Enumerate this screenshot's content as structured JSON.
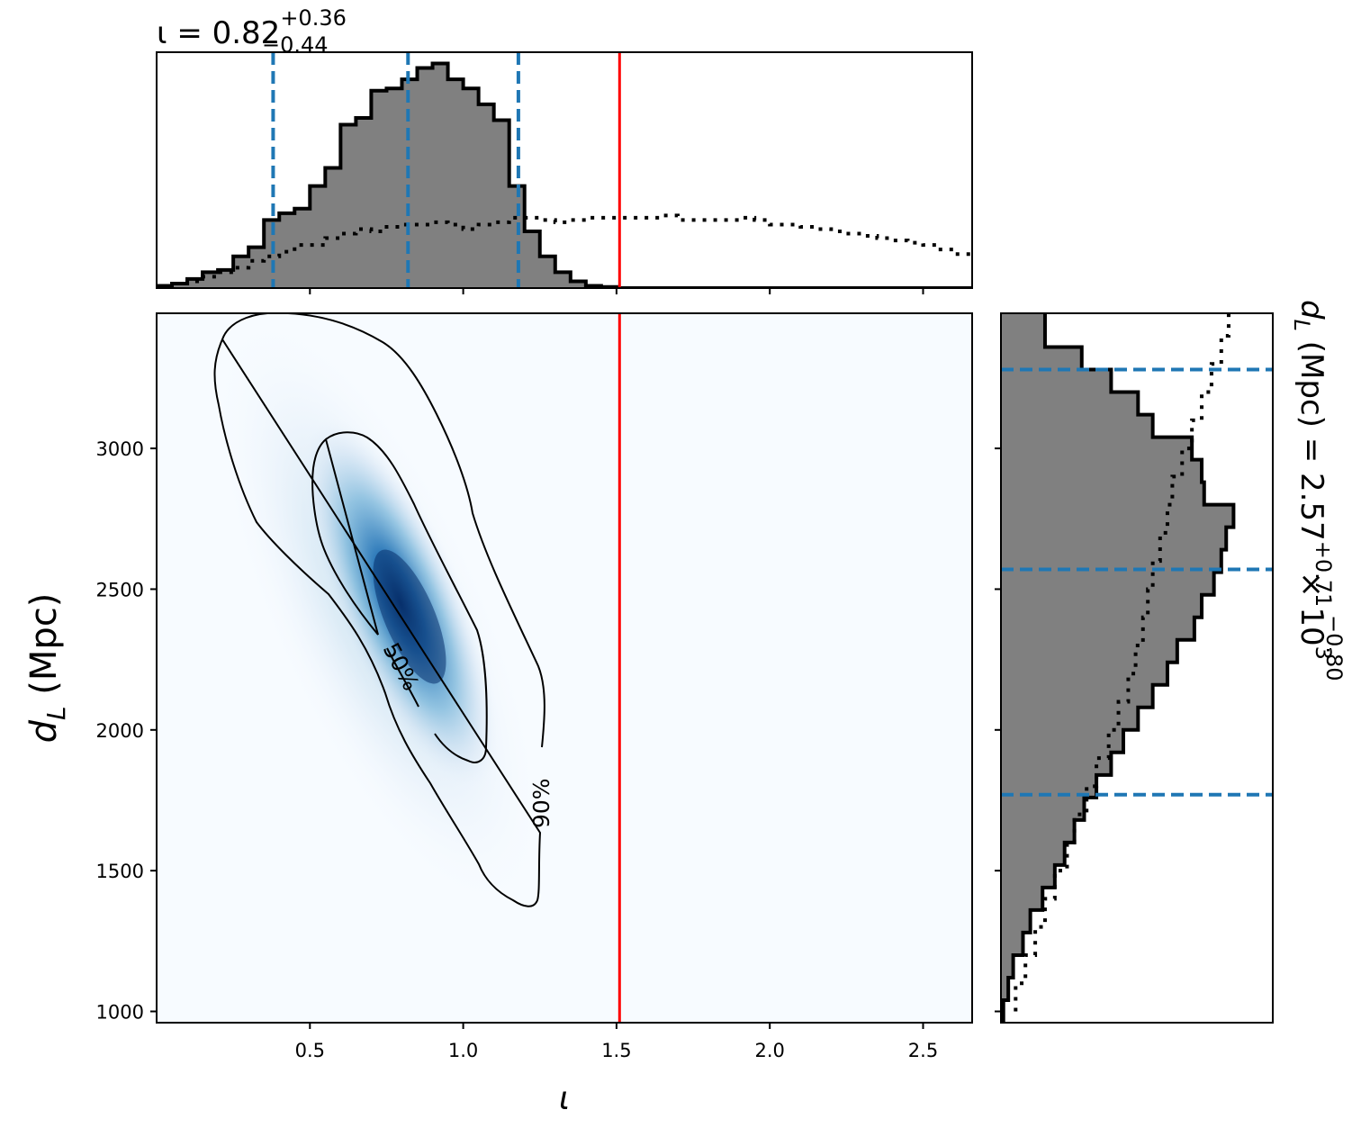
{
  "chart_data": {
    "type": "corner",
    "title_top": {
      "main": "ι = 0.82",
      "sup": "+0.36",
      "sub": "−0.44"
    },
    "title_right": {
      "main": "d",
      "main_sub": "L",
      "rest": " (Mpc) = 2.57",
      "sup": "+0.71",
      "sub": "−0.80",
      "tail": " × 10",
      "exp": "3"
    },
    "xlabel": "ι",
    "ylabel": {
      "main": "d",
      "sub": "L",
      "rest": " (Mpc)"
    },
    "xlim": [
      0.0,
      2.66
    ],
    "ylim": [
      960,
      3480
    ],
    "xticks": [
      0.5,
      1.0,
      1.5,
      2.0,
      2.5
    ],
    "xtick_labels": [
      "0.5",
      "1.0",
      "1.5",
      "2.0",
      "2.5"
    ],
    "yticks": [
      1000,
      1500,
      2000,
      2500,
      3000
    ],
    "ytick_labels": [
      "1000",
      "1500",
      "2000",
      "2500",
      "3000"
    ],
    "truth": {
      "iota": 1.51,
      "color": "#ff0000"
    },
    "quantiles_iota": [
      0.38,
      0.82,
      1.18
    ],
    "quantiles_dL": [
      1770,
      2570,
      3280
    ],
    "quantile_color": "#1f77b4",
    "hist_fill": "#808080",
    "density_color": "#08519c",
    "contour_labels": [
      "50%",
      "90%"
    ],
    "iota_posterior": {
      "edges": [
        0.0,
        0.05,
        0.1,
        0.15,
        0.2,
        0.25,
        0.3,
        0.35,
        0.4,
        0.45,
        0.5,
        0.55,
        0.6,
        0.65,
        0.7,
        0.75,
        0.8,
        0.85,
        0.9,
        0.95,
        1.0,
        1.05,
        1.1,
        1.15,
        1.2,
        1.25,
        1.3,
        1.35,
        1.4,
        1.45,
        1.5,
        2.66
      ],
      "counts": [
        0.01,
        0.02,
        0.04,
        0.07,
        0.08,
        0.14,
        0.18,
        0.3,
        0.33,
        0.35,
        0.45,
        0.53,
        0.72,
        0.75,
        0.87,
        0.88,
        0.92,
        0.97,
        0.99,
        0.92,
        0.88,
        0.81,
        0.74,
        0.45,
        0.25,
        0.14,
        0.07,
        0.03,
        0.01,
        0.005,
        0.0
      ]
    },
    "iota_prior_x": [
      0.0,
      0.05,
      0.1,
      0.15,
      0.2,
      0.25,
      0.3,
      0.35,
      0.4,
      0.45,
      0.5,
      0.55,
      0.6,
      0.65,
      0.7,
      0.75,
      0.8,
      0.85,
      0.9,
      0.95,
      1.0,
      1.05,
      1.1,
      1.15,
      1.2,
      1.25,
      1.3,
      1.35,
      1.4,
      1.45,
      1.5,
      1.55,
      1.6,
      1.65,
      1.7,
      1.75,
      1.8,
      1.85,
      1.9,
      1.95,
      2.0,
      2.05,
      2.1,
      2.15,
      2.2,
      2.25,
      2.3,
      2.35,
      2.4,
      2.45,
      2.5,
      2.55,
      2.6,
      2.66
    ],
    "iota_prior_counts": [
      0.01,
      0.02,
      0.03,
      0.05,
      0.07,
      0.09,
      0.12,
      0.14,
      0.16,
      0.19,
      0.19,
      0.22,
      0.24,
      0.26,
      0.25,
      0.27,
      0.28,
      0.28,
      0.29,
      0.28,
      0.26,
      0.28,
      0.29,
      0.31,
      0.31,
      0.3,
      0.29,
      0.3,
      0.31,
      0.31,
      0.31,
      0.31,
      0.31,
      0.32,
      0.3,
      0.3,
      0.3,
      0.3,
      0.31,
      0.3,
      0.28,
      0.28,
      0.27,
      0.26,
      0.25,
      0.24,
      0.23,
      0.22,
      0.21,
      0.2,
      0.19,
      0.17,
      0.15,
      0.13
    ],
    "dL_posterior": {
      "edges": [
        960,
        1040,
        1120,
        1200,
        1280,
        1360,
        1440,
        1520,
        1600,
        1680,
        1760,
        1840,
        1920,
        2000,
        2080,
        2160,
        2240,
        2320,
        2400,
        2480,
        2560,
        2640,
        2720,
        2800,
        2880,
        2960,
        3040,
        3120,
        3200,
        3280,
        3360,
        3480
      ],
      "counts": [
        0.01,
        0.03,
        0.05,
        0.09,
        0.12,
        0.17,
        0.22,
        0.26,
        0.3,
        0.34,
        0.39,
        0.45,
        0.5,
        0.56,
        0.62,
        0.68,
        0.72,
        0.79,
        0.82,
        0.87,
        0.9,
        0.92,
        0.95,
        0.83,
        0.82,
        0.78,
        0.62,
        0.56,
        0.45,
        0.33,
        0.18
      ]
    },
    "dL_prior_y": [
      1000,
      1100,
      1200,
      1300,
      1400,
      1500,
      1600,
      1700,
      1800,
      1900,
      2000,
      2100,
      2200,
      2300,
      2400,
      2500,
      2600,
      2700,
      2800,
      2900,
      3000,
      3100,
      3200,
      3300,
      3400,
      3480
    ],
    "dL_prior_counts": [
      0.06,
      0.1,
      0.14,
      0.18,
      0.22,
      0.27,
      0.3,
      0.35,
      0.39,
      0.44,
      0.48,
      0.52,
      0.55,
      0.58,
      0.6,
      0.62,
      0.65,
      0.68,
      0.7,
      0.74,
      0.78,
      0.82,
      0.86,
      0.9,
      0.93,
      0.94
    ]
  }
}
